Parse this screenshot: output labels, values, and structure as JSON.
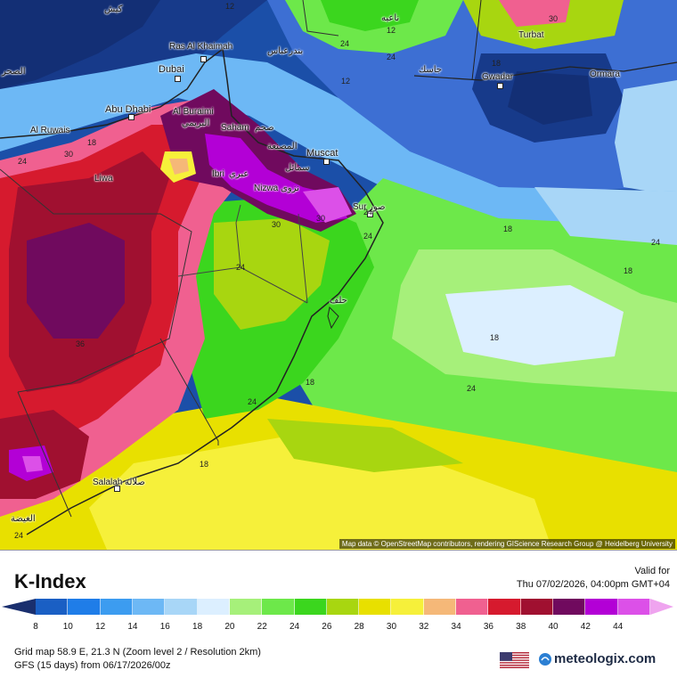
{
  "map": {
    "attribution": "Map data © OpenStreetMap contributors, rendering GIScience Research Group @ Heidelberg University",
    "cities": [
      {
        "key": "ras-al-khaimah",
        "label": "Ras Al Khaimah"
      },
      {
        "key": "dubai",
        "label": "Dubai"
      },
      {
        "key": "abu-dhabi",
        "label": "Abu Dhabi"
      },
      {
        "key": "al-buraimi",
        "label": "Al Buraimi"
      },
      {
        "key": "al-buraimi-ar",
        "label": "البريمي"
      },
      {
        "key": "al-ruwais",
        "label": "Al Ruwais"
      },
      {
        "key": "liwa",
        "label": "Liwa"
      },
      {
        "key": "saham",
        "label": "Saham"
      },
      {
        "key": "saham-ar",
        "label": "صحم"
      },
      {
        "key": "muscat",
        "label": "Muscat"
      },
      {
        "key": "ibri",
        "label": "Ibri"
      },
      {
        "key": "ibri-ar",
        "label": "عبري"
      },
      {
        "key": "nizwa",
        "label": "Nizwa"
      },
      {
        "key": "nizwa-ar",
        "label": "نزوى"
      },
      {
        "key": "sur",
        "label": "Sur"
      },
      {
        "key": "sur-ar",
        "label": "صور"
      },
      {
        "key": "salalah",
        "label": "Salalah"
      },
      {
        "key": "salalah-ar",
        "label": "صلالة"
      },
      {
        "key": "turbat",
        "label": "Turbat"
      },
      {
        "key": "gwadar",
        "label": "Gwadar"
      },
      {
        "key": "ormara",
        "label": "Ormara"
      },
      {
        "key": "ghaydah-ar",
        "label": "الغيضة"
      },
      {
        "key": "musanaah-ar",
        "label": "المصنعة"
      },
      {
        "key": "sumail-ar",
        "label": "سمائل"
      },
      {
        "key": "masirah-ar",
        "label": "حلف"
      },
      {
        "key": "jask-ar",
        "label": "جاسك"
      },
      {
        "key": "kish-ar",
        "label": "کیش"
      },
      {
        "key": "bandar-ar",
        "label": "بندرعباس"
      },
      {
        "key": "nikshahr-ar",
        "label": "ناعیه"
      },
      {
        "key": "fujairah-ar",
        "label": "الصحر"
      }
    ],
    "contour_labels": [
      "12",
      "24",
      "12",
      "24",
      "18",
      "12",
      "30",
      "18",
      "24",
      "30",
      "18",
      "24",
      "30",
      "24",
      "36",
      "18",
      "24",
      "24",
      "18",
      "24",
      "30",
      "24",
      "18",
      "24",
      "18"
    ]
  },
  "footer": {
    "title": "K-Index",
    "valid_label": "Valid for",
    "valid_time": "Thu 07/02/2026, 04:00pm GMT+04",
    "grid_info": "Grid map 58.9 E, 21.3 N (Zoom level 2 / Resolution 2km)",
    "gfs_info": "GFS (15 days) from  06/17/2026/00z",
    "brand": "meteologix.com"
  },
  "legend": {
    "ticks": [
      "8",
      "10",
      "12",
      "14",
      "16",
      "18",
      "20",
      "22",
      "24",
      "26",
      "28",
      "30",
      "32",
      "34",
      "36",
      "38",
      "40",
      "42",
      "44"
    ],
    "colors": [
      "#1a5fc4",
      "#1f7de8",
      "#3c9cf0",
      "#6db8f5",
      "#a8d6f7",
      "#dcefff",
      "#a6f07a",
      "#6de84a",
      "#3bd61e",
      "#a8d610",
      "#e8e000",
      "#f6f03a",
      "#f5b878",
      "#f06090",
      "#d61a2e",
      "#a01030",
      "#700a5e",
      "#b300d6",
      "#dc50e8"
    ],
    "underflow_color": "#1a2f6e",
    "overflow_color": "#efa4ef"
  }
}
